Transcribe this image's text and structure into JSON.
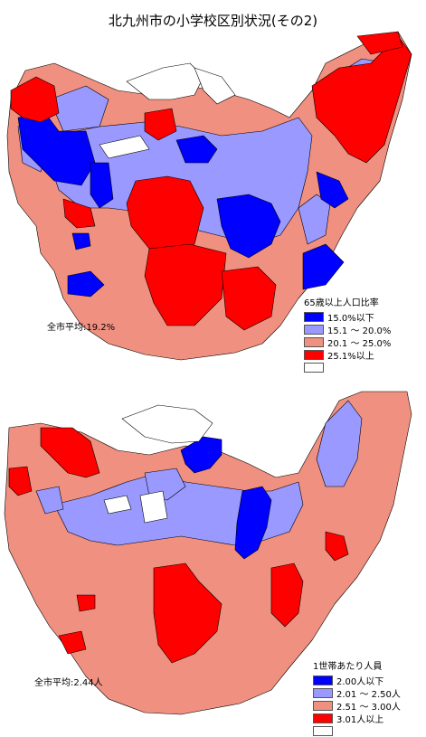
{
  "title": "北九州市の小学校区別状況(その2)",
  "colors": {
    "blue": "#0000ff",
    "light_blue": "#9999ff",
    "salmon": "#f09080",
    "red": "#ff0000",
    "white": "#ffffff",
    "boundary": "#000000"
  },
  "map1": {
    "average_label": "全市平均:19.2%",
    "legend_title": "65歳以上人口比率",
    "legend_items": [
      {
        "label": "15.0%以下",
        "color": "#0000ff"
      },
      {
        "label": "15.1 ～ 20.0%",
        "color": "#9999ff"
      },
      {
        "label": "20.1 ～ 25.0%",
        "color": "#f09080"
      },
      {
        "label": "25.1%以上",
        "color": "#ff0000"
      },
      {
        "label": "",
        "color": "#ffffff"
      }
    ]
  },
  "map2": {
    "average_label": "全市平均:2.44人",
    "legend_title": "1世帯あたり人員",
    "legend_items": [
      {
        "label": "2.00人以下",
        "color": "#0000ff"
      },
      {
        "label": "2.01 ～ 2.50人",
        "color": "#9999ff"
      },
      {
        "label": "2.51 ～ 3.00人",
        "color": "#f09080"
      },
      {
        "label": "3.01人以上",
        "color": "#ff0000"
      },
      {
        "label": "",
        "color": "#ffffff"
      }
    ]
  }
}
